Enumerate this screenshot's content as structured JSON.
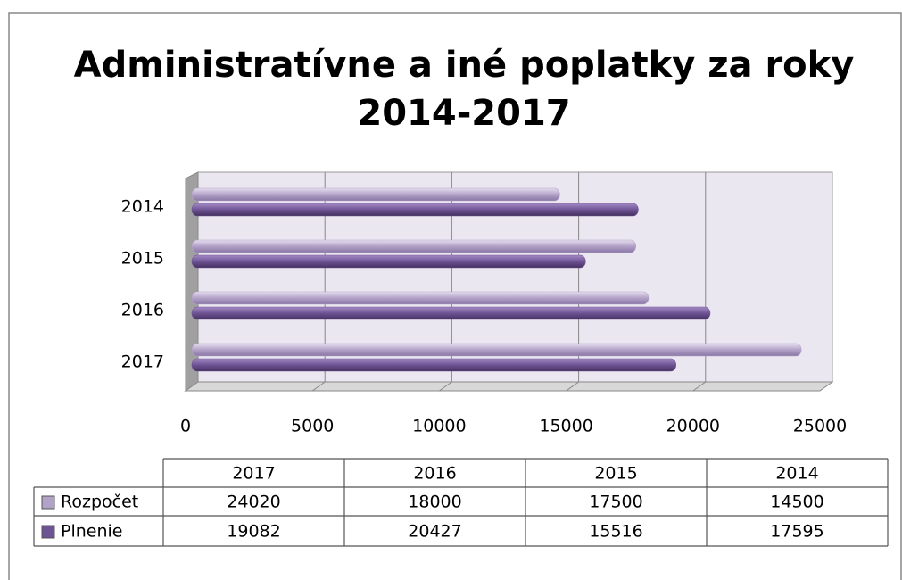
{
  "chart_data": {
    "type": "bar",
    "orientation": "horizontal",
    "title": "Administratívne a iné poplatky za roky 2014-2017",
    "categories": [
      "2017",
      "2016",
      "2015",
      "2014"
    ],
    "series": [
      {
        "name": "Rozpočet",
        "color": "#b3a2c7",
        "values": [
          24020,
          18000,
          17500,
          14500
        ]
      },
      {
        "name": "Plnenie",
        "color": "#6e5494",
        "values": [
          19082,
          20427,
          15516,
          17595
        ]
      }
    ],
    "xlim": [
      0,
      25000
    ],
    "xticks": [
      0,
      5000,
      10000,
      15000,
      20000,
      25000
    ],
    "grid": true
  }
}
